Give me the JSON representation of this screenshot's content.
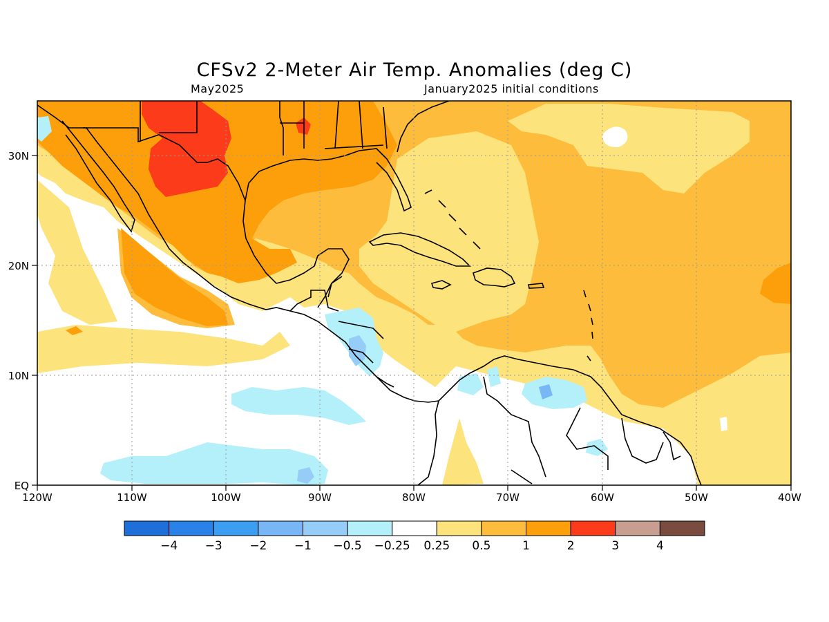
{
  "header": {
    "title": "CFSv2 2-Meter Air Temp. Anomalies (deg C)",
    "target_month": "May2025",
    "init": "January2025 initial conditions"
  },
  "map": {
    "lon_labels": [
      "120W",
      "110W",
      "100W",
      "90W",
      "80W",
      "70W",
      "60W",
      "50W",
      "40W"
    ],
    "lat_labels": [
      "30N",
      "20N",
      "10N",
      "EQ"
    ],
    "lon_range": [
      -120,
      -40
    ],
    "lat_range": [
      0,
      35
    ],
    "grid": "dotted"
  },
  "colorbar": {
    "labels": [
      "-4",
      "-3",
      "-2",
      "-1",
      "-0.5",
      "-0.25",
      "0.25",
      "0.5",
      "1",
      "2",
      "3",
      "4"
    ],
    "colors": [
      "#1e6fd9",
      "#2a82e8",
      "#3c9ef2",
      "#78b6f5",
      "#96ccf8",
      "#b4f0fa",
      "#ffffff",
      "#fde37c",
      "#fdbc3c",
      "#fd9f0a",
      "#fc3b1a",
      "#c89e91",
      "#7a4c3f"
    ]
  },
  "colors": {
    "ocean_white": "#ffffff",
    "light_yellow": "#fde37c",
    "light_orange": "#fdbc3c",
    "orange": "#fd9f0a",
    "red": "#fc3b1a",
    "light_blue": "#b4f0fa",
    "blue": "#78b6f5"
  }
}
